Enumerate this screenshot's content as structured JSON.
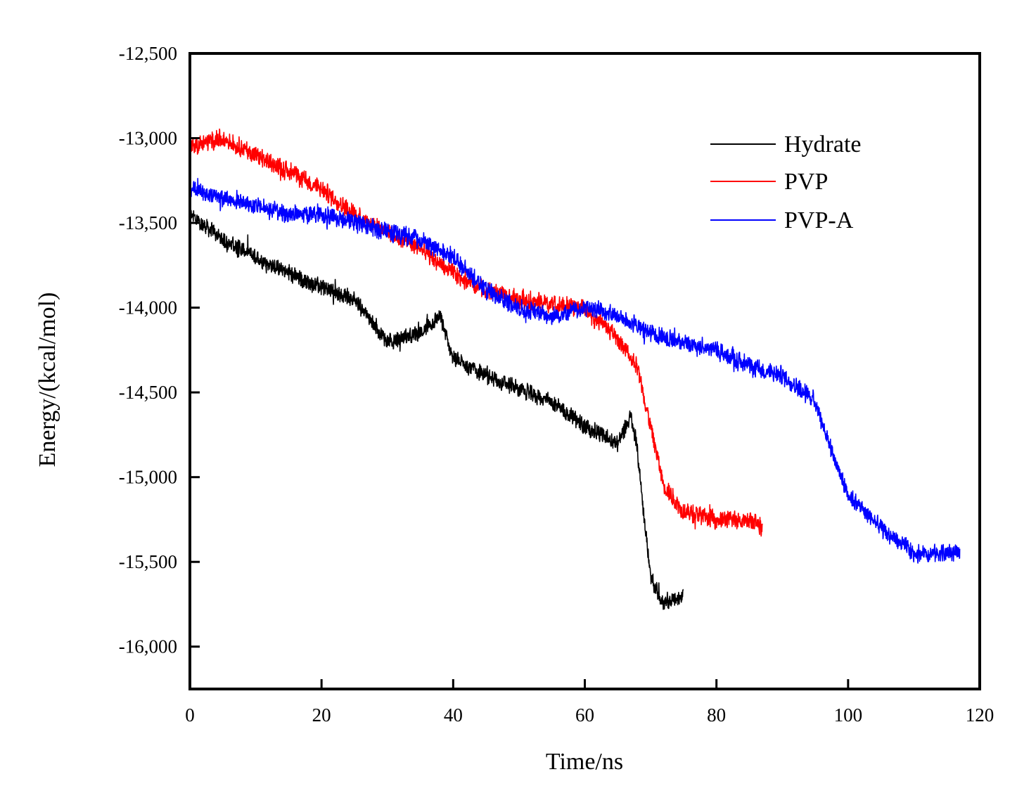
{
  "chart_data": {
    "type": "line",
    "title": "",
    "xlabel": "Time/ns",
    "ylabel": "Energy/(kcal/mol)",
    "xlim": [
      0,
      120
    ],
    "ylim": [
      -16250,
      -12500
    ],
    "xticks": [
      0,
      20,
      40,
      60,
      80,
      100,
      120
    ],
    "xtick_labels": [
      "0",
      "20",
      "40",
      "60",
      "80",
      "100",
      "120"
    ],
    "yticks": [
      -12500,
      -13000,
      -13500,
      -14000,
      -14500,
      -15000,
      -15500,
      -16000
    ],
    "ytick_labels": [
      "-12,500",
      "-13,000",
      "-13,500",
      "-14,000",
      "-14,500",
      "-15,000",
      "-15,500",
      "-16,000"
    ],
    "legend_position": "top-right",
    "series": [
      {
        "name": "Hydrate",
        "color": "#000000",
        "noise": 55,
        "x": [
          0,
          1,
          5,
          10,
          15,
          20,
          25,
          30,
          35,
          38,
          40,
          45,
          50,
          55,
          60,
          65,
          67,
          68,
          70,
          72,
          75
        ],
        "y": [
          -13450,
          -13480,
          -13600,
          -13700,
          -13800,
          -13880,
          -13950,
          -14200,
          -14150,
          -14050,
          -14300,
          -14400,
          -14480,
          -14560,
          -14700,
          -14800,
          -14640,
          -14850,
          -15600,
          -15750,
          -15700
        ]
      },
      {
        "name": "PVP",
        "color": "#ff0000",
        "noise": 60,
        "x": [
          0,
          5,
          10,
          15,
          20,
          25,
          30,
          35,
          40,
          45,
          50,
          55,
          60,
          65,
          68,
          70,
          72,
          75,
          80,
          85,
          87
        ],
        "y": [
          -13050,
          -13000,
          -13100,
          -13200,
          -13300,
          -13450,
          -13550,
          -13650,
          -13800,
          -13900,
          -13950,
          -13980,
          -14000,
          -14180,
          -14350,
          -14700,
          -15050,
          -15200,
          -15250,
          -15250,
          -15300
        ]
      },
      {
        "name": "PVP-A",
        "color": "#0000ff",
        "noise": 60,
        "x": [
          0,
          5,
          10,
          15,
          20,
          25,
          30,
          35,
          40,
          45,
          50,
          55,
          60,
          65,
          70,
          75,
          80,
          85,
          90,
          95,
          98,
          100,
          105,
          110,
          117
        ],
        "y": [
          -13300,
          -13350,
          -13400,
          -13450,
          -13450,
          -13500,
          -13550,
          -13600,
          -13700,
          -13900,
          -14000,
          -14050,
          -14000,
          -14050,
          -14150,
          -14200,
          -14250,
          -14350,
          -14400,
          -14550,
          -14900,
          -15100,
          -15300,
          -15450,
          -15450
        ]
      }
    ]
  }
}
